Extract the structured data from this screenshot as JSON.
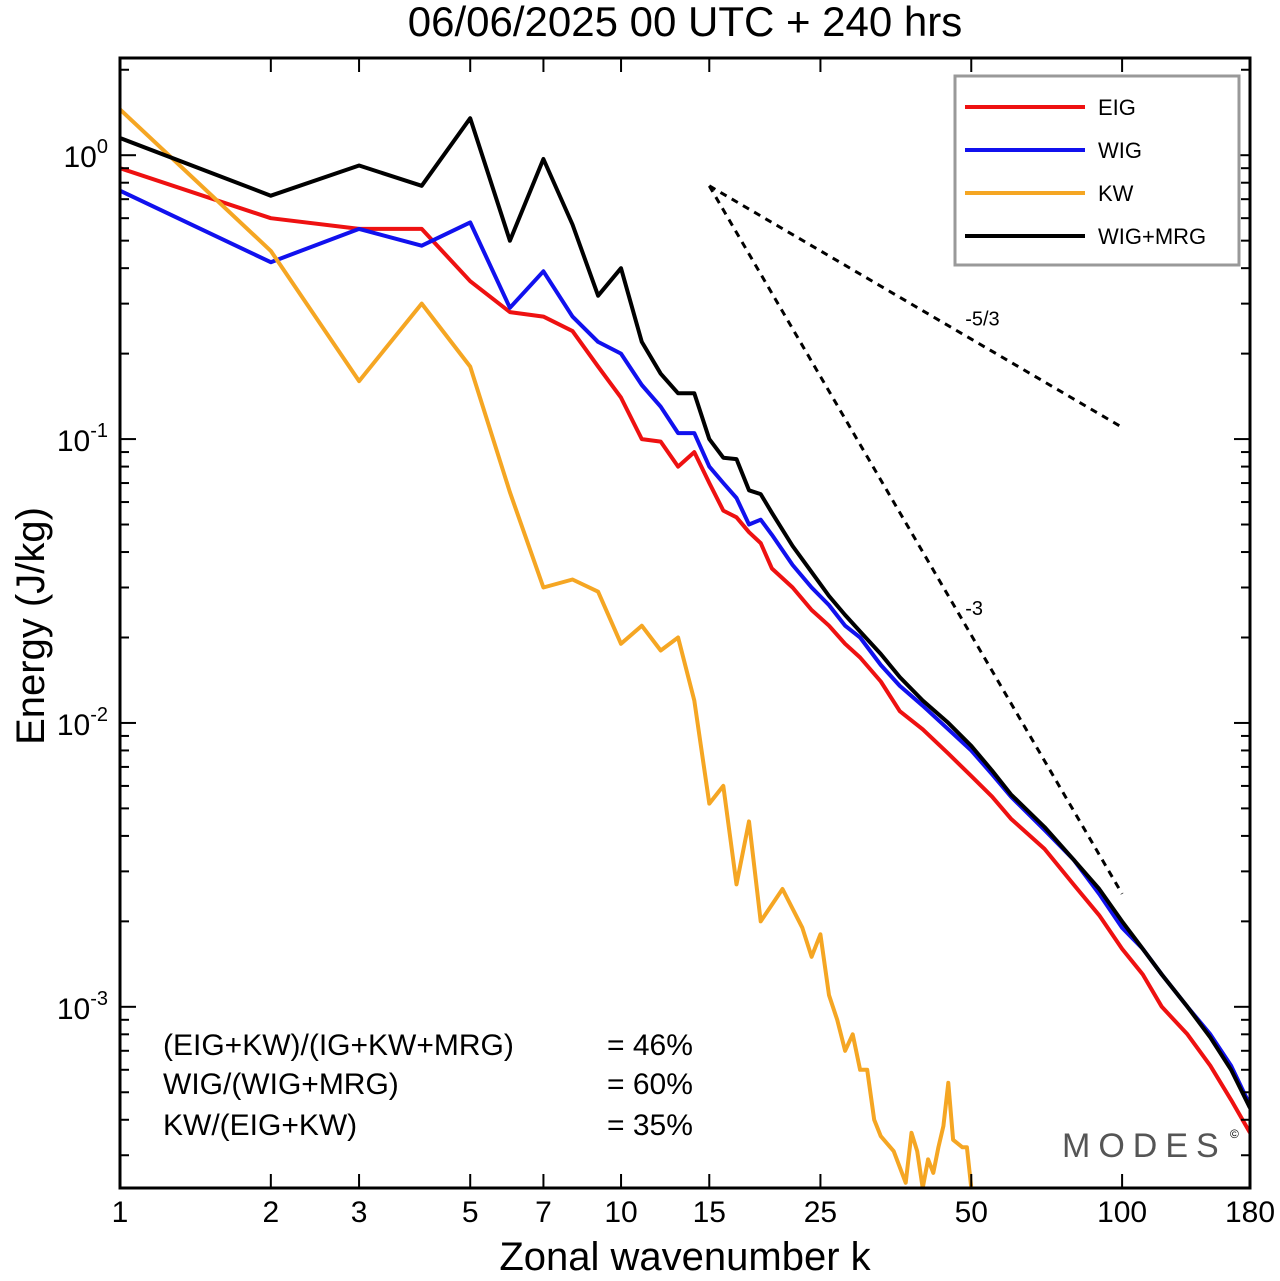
{
  "chart_data": {
    "type": "line",
    "title": "06/06/2025  00 UTC  + 240 hrs",
    "xlabel": "Zonal wavenumber k",
    "ylabel": "Energy (J/kg)",
    "xscale": "log",
    "yscale": "log",
    "xlim": [
      1,
      180
    ],
    "ylim": [
      0.00023,
      2.2
    ],
    "x_ticks": [
      1,
      2,
      3,
      5,
      7,
      10,
      15,
      25,
      50,
      100,
      180
    ],
    "y_ticks": [
      {
        "value": 1,
        "base": "10",
        "exp": "0"
      },
      {
        "value": 0.1,
        "base": "10",
        "exp": "-1"
      },
      {
        "value": 0.01,
        "base": "10",
        "exp": "-2"
      },
      {
        "value": 0.001,
        "base": "10",
        "exp": "-3"
      }
    ],
    "legend_position": "top-right",
    "series": [
      {
        "name": "EIG",
        "color": "#ee1111",
        "points": [
          [
            1,
            0.9
          ],
          [
            2,
            0.6
          ],
          [
            3,
            0.55
          ],
          [
            4,
            0.55
          ],
          [
            5,
            0.36
          ],
          [
            6,
            0.28
          ],
          [
            7,
            0.27
          ],
          [
            8,
            0.24
          ],
          [
            9,
            0.18
          ],
          [
            10,
            0.14
          ],
          [
            11,
            0.1
          ],
          [
            12,
            0.098
          ],
          [
            13,
            0.08
          ],
          [
            14,
            0.09
          ],
          [
            15,
            0.07
          ],
          [
            16,
            0.056
          ],
          [
            17,
            0.053
          ],
          [
            18,
            0.047
          ],
          [
            19,
            0.043
          ],
          [
            20,
            0.035
          ],
          [
            22,
            0.03
          ],
          [
            24,
            0.025
          ],
          [
            26,
            0.022
          ],
          [
            28,
            0.019
          ],
          [
            30,
            0.017
          ],
          [
            33,
            0.014
          ],
          [
            36,
            0.011
          ],
          [
            40,
            0.0095
          ],
          [
            45,
            0.0078
          ],
          [
            50,
            0.0065
          ],
          [
            55,
            0.0055
          ],
          [
            60,
            0.0046
          ],
          [
            70,
            0.0036
          ],
          [
            80,
            0.0027
          ],
          [
            90,
            0.0021
          ],
          [
            100,
            0.0016
          ],
          [
            110,
            0.0013
          ],
          [
            120,
            0.001
          ],
          [
            135,
            0.0008
          ],
          [
            150,
            0.00062
          ],
          [
            165,
            0.00047
          ],
          [
            180,
            0.00036
          ]
        ]
      },
      {
        "name": "WIG",
        "color": "#1111ee",
        "points": [
          [
            1,
            0.75
          ],
          [
            2,
            0.42
          ],
          [
            3,
            0.55
          ],
          [
            4,
            0.48
          ],
          [
            5,
            0.58
          ],
          [
            6,
            0.29
          ],
          [
            7,
            0.39
          ],
          [
            8,
            0.27
          ],
          [
            9,
            0.22
          ],
          [
            10,
            0.2
          ],
          [
            11,
            0.155
          ],
          [
            12,
            0.13
          ],
          [
            13,
            0.105
          ],
          [
            14,
            0.105
          ],
          [
            15,
            0.08
          ],
          [
            16,
            0.07
          ],
          [
            17,
            0.062
          ],
          [
            18,
            0.05
          ],
          [
            19,
            0.052
          ],
          [
            20,
            0.046
          ],
          [
            22,
            0.036
          ],
          [
            24,
            0.03
          ],
          [
            26,
            0.026
          ],
          [
            28,
            0.022
          ],
          [
            30,
            0.02
          ],
          [
            33,
            0.016
          ],
          [
            36,
            0.0135
          ],
          [
            40,
            0.0115
          ],
          [
            45,
            0.0095
          ],
          [
            50,
            0.008
          ],
          [
            55,
            0.0066
          ],
          [
            60,
            0.0055
          ],
          [
            70,
            0.0042
          ],
          [
            80,
            0.0033
          ],
          [
            90,
            0.0025
          ],
          [
            100,
            0.0019
          ],
          [
            110,
            0.0016
          ],
          [
            120,
            0.0013
          ],
          [
            135,
            0.001
          ],
          [
            150,
            0.0008
          ],
          [
            165,
            0.00062
          ],
          [
            180,
            0.00045
          ]
        ]
      },
      {
        "name": "KW",
        "color": "#f5a623",
        "points": [
          [
            1,
            1.45
          ],
          [
            2,
            0.46
          ],
          [
            3,
            0.16
          ],
          [
            4,
            0.3
          ],
          [
            5,
            0.18
          ],
          [
            6,
            0.065
          ],
          [
            7,
            0.03
          ],
          [
            8,
            0.032
          ],
          [
            9,
            0.029
          ],
          [
            10,
            0.019
          ],
          [
            11,
            0.022
          ],
          [
            12,
            0.018
          ],
          [
            13,
            0.02
          ],
          [
            14,
            0.012
          ],
          [
            15,
            0.0052
          ],
          [
            16,
            0.006
          ],
          [
            17,
            0.0027
          ],
          [
            18,
            0.0045
          ],
          [
            19,
            0.002
          ],
          [
            21,
            0.0026
          ],
          [
            23,
            0.0019
          ],
          [
            24,
            0.0015
          ],
          [
            25,
            0.0018
          ],
          [
            26,
            0.0011
          ],
          [
            27,
            0.0009
          ],
          [
            28,
            0.0007
          ],
          [
            29,
            0.0008
          ],
          [
            30,
            0.0006
          ],
          [
            31,
            0.0006
          ],
          [
            32,
            0.0004
          ],
          [
            33,
            0.00035
          ],
          [
            35,
            0.00031
          ],
          [
            37,
            0.00024
          ],
          [
            38,
            0.00036
          ],
          [
            39,
            0.00031
          ],
          [
            40,
            0.00023
          ],
          [
            41,
            0.00029
          ],
          [
            42,
            0.00026
          ],
          [
            43,
            0.00032
          ],
          [
            44,
            0.00038
          ],
          [
            45,
            0.00054
          ],
          [
            46,
            0.00034
          ],
          [
            48,
            0.00032
          ],
          [
            49,
            0.00032
          ],
          [
            50,
            0.00023
          ]
        ]
      },
      {
        "name": "WIG+MRG",
        "color": "#000000",
        "points": [
          [
            1,
            1.15
          ],
          [
            2,
            0.72
          ],
          [
            3,
            0.92
          ],
          [
            4,
            0.78
          ],
          [
            5,
            1.35
          ],
          [
            6,
            0.5
          ],
          [
            7,
            0.97
          ],
          [
            8,
            0.57
          ],
          [
            9,
            0.32
          ],
          [
            10,
            0.4
          ],
          [
            11,
            0.22
          ],
          [
            12,
            0.17
          ],
          [
            13,
            0.145
          ],
          [
            14,
            0.145
          ],
          [
            15,
            0.1
          ],
          [
            16,
            0.086
          ],
          [
            17,
            0.085
          ],
          [
            18,
            0.066
          ],
          [
            19,
            0.064
          ],
          [
            20,
            0.055
          ],
          [
            22,
            0.042
          ],
          [
            24,
            0.034
          ],
          [
            26,
            0.028
          ],
          [
            28,
            0.024
          ],
          [
            30,
            0.021
          ],
          [
            33,
            0.0175
          ],
          [
            36,
            0.0145
          ],
          [
            40,
            0.012
          ],
          [
            45,
            0.01
          ],
          [
            50,
            0.0083
          ],
          [
            55,
            0.0068
          ],
          [
            60,
            0.0056
          ],
          [
            70,
            0.0043
          ],
          [
            80,
            0.0033
          ],
          [
            90,
            0.0026
          ],
          [
            100,
            0.002
          ],
          [
            110,
            0.0016
          ],
          [
            120,
            0.0013
          ],
          [
            135,
            0.001
          ],
          [
            150,
            0.00078
          ],
          [
            165,
            0.0006
          ],
          [
            180,
            0.00044
          ]
        ]
      }
    ],
    "reference_lines": [
      {
        "label": "-5/3",
        "from": [
          15,
          0.78
        ],
        "to": [
          100,
          0.11
        ]
      },
      {
        "label": "-3",
        "from": [
          15,
          0.78
        ],
        "to": [
          100,
          0.0025
        ]
      }
    ],
    "annotations": [
      {
        "label": "(EIG+KW)/(IG+KW+MRG)",
        "value": "= 46%"
      },
      {
        "label": "WIG/(WIG+MRG)",
        "value": "= 60%"
      },
      {
        "label": "KW/(EIG+KW)",
        "value": "= 35%"
      }
    ],
    "watermark": "MODES",
    "watermark_mark": "©",
    "grid": false
  }
}
